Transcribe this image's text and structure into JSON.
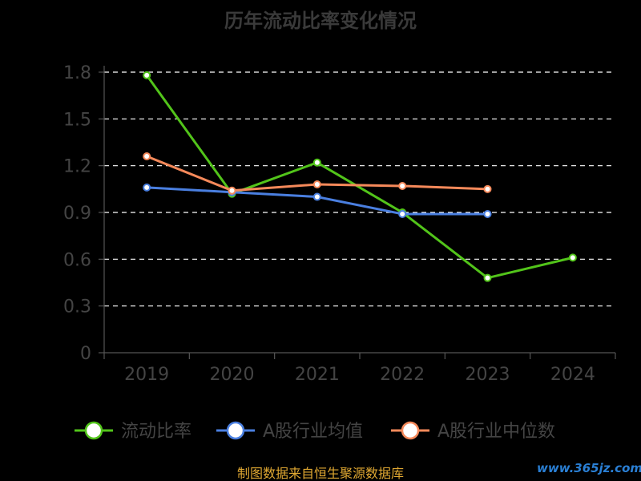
{
  "chart_data": {
    "type": "line",
    "title": "历年流动比率变化情况",
    "categories": [
      "2019",
      "2020",
      "2021",
      "2022",
      "2023",
      "2024"
    ],
    "ylim": [
      0,
      1.8
    ],
    "yticks": [
      "0",
      "0.3",
      "0.6",
      "0.9",
      "1.2",
      "1.5",
      "1.8"
    ],
    "grid": true,
    "legend_position": "bottom",
    "series": [
      {
        "name": "流动比率",
        "color": "#52c41a",
        "values": [
          1.78,
          1.02,
          1.22,
          0.9,
          0.48,
          0.61
        ]
      },
      {
        "name": "A股行业均值",
        "color": "#4a7fe0",
        "values": [
          1.06,
          1.03,
          1.0,
          0.89,
          0.89,
          null
        ]
      },
      {
        "name": "A股行业中位数",
        "color": "#f5895a",
        "values": [
          1.26,
          1.04,
          1.08,
          1.07,
          1.05,
          null
        ]
      }
    ]
  },
  "footer": {
    "source": "制图数据来自恒生聚源数据库",
    "watermark": "www.365jz.com"
  }
}
